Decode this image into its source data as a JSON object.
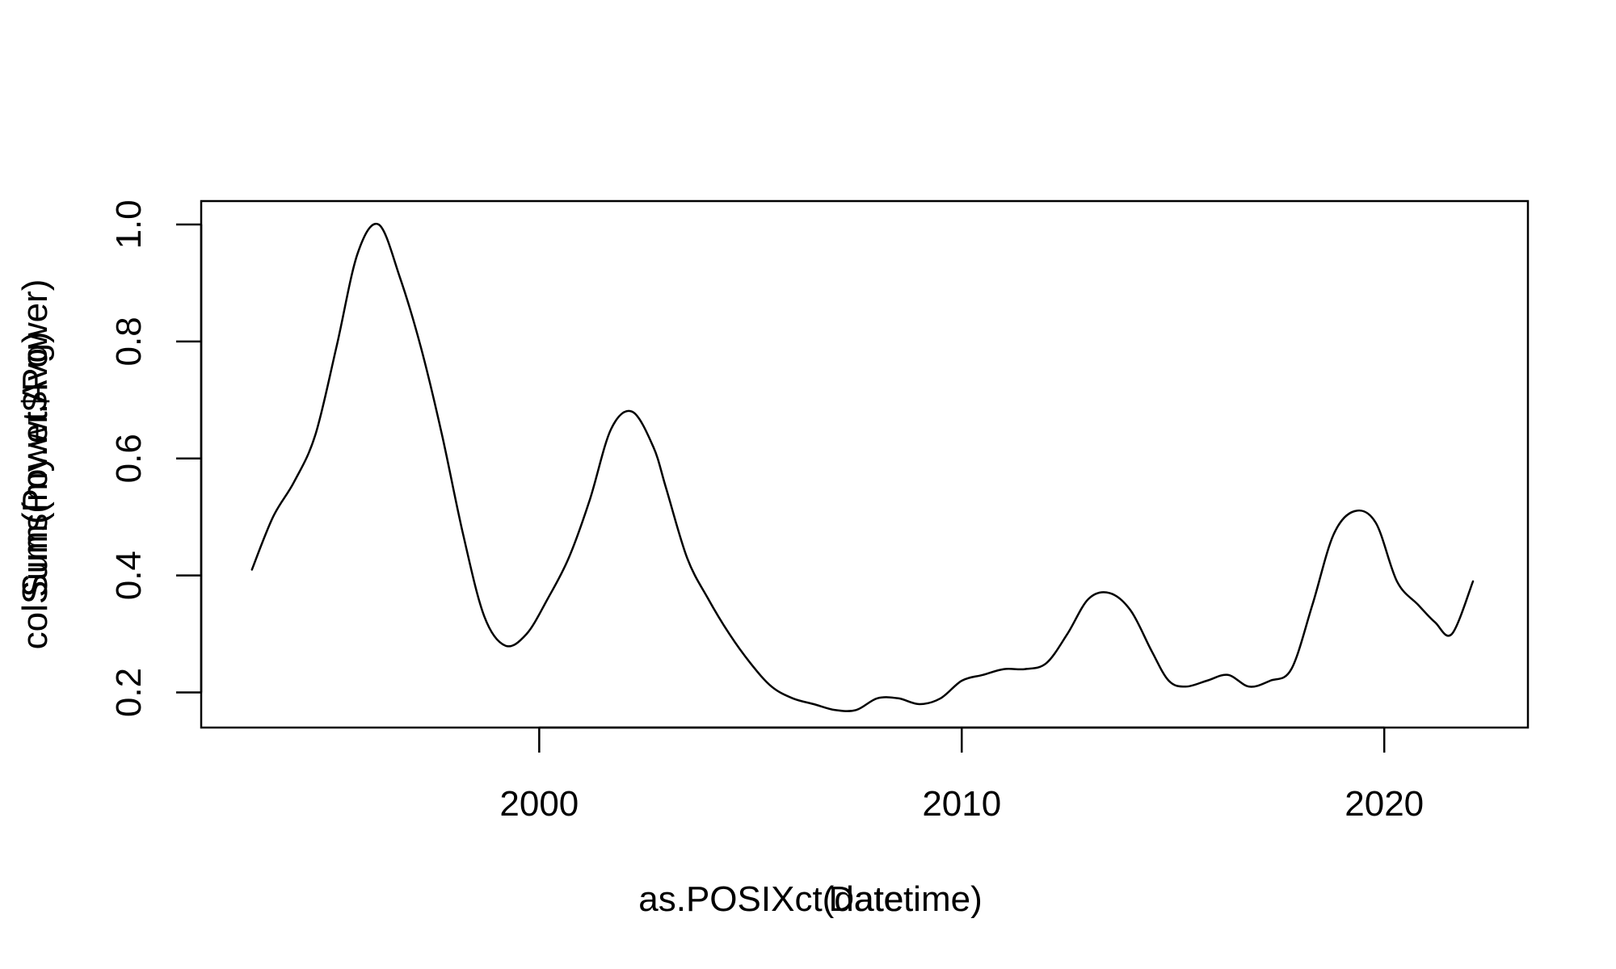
{
  "chart_data": {
    "type": "line",
    "x_axis_titles": [
      "as.POSIXct(datetime)",
      "Date"
    ],
    "y_axis_titles": [
      "colSums(my.wt$Power)",
      "Sum(Power.Avg)"
    ],
    "x": [
      1993.2,
      1993.7,
      1994.2,
      1994.7,
      1995.2,
      1995.7,
      1996.2,
      1996.7,
      1997.2,
      1997.7,
      1998.2,
      1998.7,
      1999.2,
      1999.7,
      2000.2,
      2000.7,
      2001.2,
      2001.7,
      2002.2,
      2002.7,
      2003.0,
      2003.5,
      2004.0,
      2004.5,
      2005.0,
      2005.5,
      2006.0,
      2006.5,
      2007.0,
      2007.5,
      2008.0,
      2008.5,
      2009.0,
      2009.5,
      2010.0,
      2010.5,
      2011.0,
      2011.5,
      2012.0,
      2012.5,
      2013.0,
      2013.5,
      2014.0,
      2014.5,
      2014.9,
      2015.3,
      2015.8,
      2016.3,
      2016.8,
      2017.3,
      2017.8,
      2018.3,
      2018.8,
      2019.3,
      2019.8,
      2020.3,
      2020.8,
      2021.2,
      2021.6,
      2022.1
    ],
    "y": [
      0.41,
      0.5,
      0.56,
      0.64,
      0.79,
      0.95,
      1.0,
      0.91,
      0.79,
      0.64,
      0.47,
      0.33,
      0.28,
      0.3,
      0.36,
      0.43,
      0.53,
      0.65,
      0.68,
      0.62,
      0.55,
      0.43,
      0.36,
      0.3,
      0.25,
      0.21,
      0.19,
      0.18,
      0.17,
      0.17,
      0.19,
      0.19,
      0.18,
      0.19,
      0.22,
      0.23,
      0.24,
      0.24,
      0.25,
      0.3,
      0.36,
      0.37,
      0.34,
      0.27,
      0.22,
      0.21,
      0.22,
      0.23,
      0.21,
      0.22,
      0.24,
      0.35,
      0.47,
      0.51,
      0.49,
      0.39,
      0.35,
      0.32,
      0.3,
      0.39
    ],
    "x_ticks": [
      2000,
      2010,
      2020
    ],
    "x_tick_labels": [
      "2000",
      "2010",
      "2020"
    ],
    "y_ticks": [
      0.2,
      0.4,
      0.6,
      0.8,
      1.0
    ],
    "y_tick_labels": [
      "0.2",
      "0.4",
      "0.6",
      "0.8",
      "1.0"
    ],
    "xlim": [
      1992.0,
      2023.4
    ],
    "ylim": [
      0.14,
      1.04
    ],
    "grid": false,
    "legend": "none",
    "line_color": "#000000"
  }
}
